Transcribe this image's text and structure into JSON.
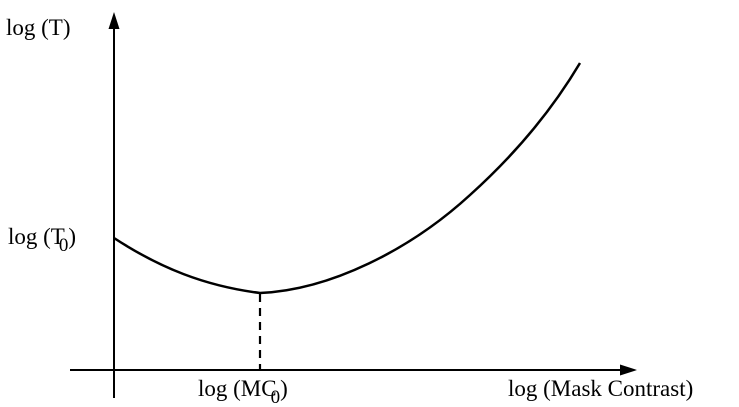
{
  "colors": {
    "background": "#ffffff",
    "ink": "#000000"
  },
  "labels": {
    "y_axis": "log (T)",
    "y_marker_main": "log (T",
    "y_marker_sub": "0",
    "y_marker_close": ")",
    "x_marker_main": "log (MC",
    "x_marker_sub": "0",
    "x_marker_close": ")",
    "x_axis": "log (Mask Contrast)"
  }
}
